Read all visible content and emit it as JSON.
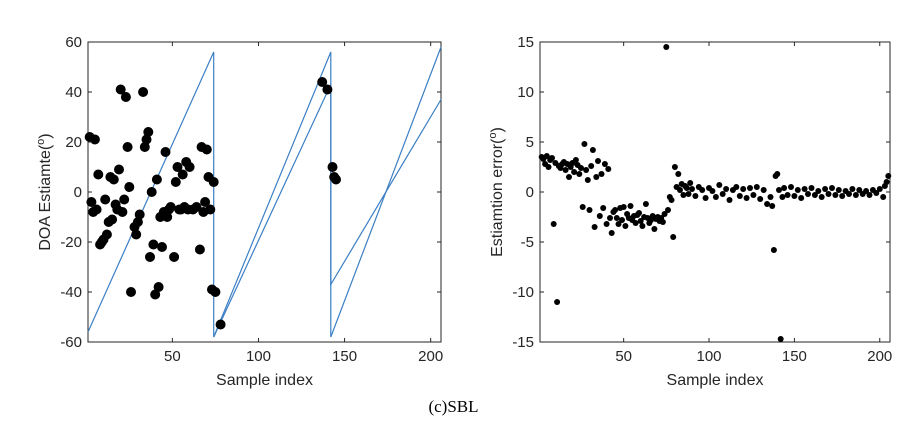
{
  "caption": "(c)SBL",
  "chart_data": [
    {
      "type": "scatter",
      "xlabel": "Sample index",
      "ylabel": "DOA Estiamte(",
      "ylabel_sup": "o",
      "ylabel_tail": ")",
      "xlim": [
        1,
        206
      ],
      "ylim": [
        -60,
        60
      ],
      "xticks": [
        50,
        100,
        150,
        200
      ],
      "yticks": [
        -60,
        -40,
        -20,
        0,
        20,
        40,
        60
      ],
      "grid": false,
      "legend": "none",
      "colors": {
        "true_line": "#3b7fc4",
        "estimates": "#000000"
      },
      "series": [
        {
          "kind": "line",
          "x": [
            1,
            74,
            74,
            142,
            142,
            206
          ],
          "y": [
            -56,
            56,
            -58,
            56,
            -58,
            58
          ]
        },
        {
          "kind": "line",
          "x": [
            74,
            142,
            142,
            206
          ],
          "y": [
            -58,
            43,
            -37,
            37
          ]
        },
        {
          "kind": "scatter",
          "points": [
            [
              2,
              22
            ],
            [
              3,
              -4
            ],
            [
              4,
              -8
            ],
            [
              5,
              21
            ],
            [
              6,
              -7
            ],
            [
              7,
              7
            ],
            [
              8,
              -21
            ],
            [
              9,
              -20
            ],
            [
              10,
              -19
            ],
            [
              11,
              -3
            ],
            [
              12,
              -17
            ],
            [
              13,
              -12
            ],
            [
              14,
              6
            ],
            [
              15,
              -11
            ],
            [
              16,
              5
            ],
            [
              17,
              -5
            ],
            [
              18,
              -7
            ],
            [
              19,
              9
            ],
            [
              20,
              41
            ],
            [
              21,
              -8
            ],
            [
              22,
              -3
            ],
            [
              23,
              38
            ],
            [
              24,
              18
            ],
            [
              25,
              2
            ],
            [
              26,
              -40
            ],
            [
              28,
              -14
            ],
            [
              29,
              -17
            ],
            [
              30,
              -12
            ],
            [
              31,
              -9
            ],
            [
              33,
              40
            ],
            [
              34,
              18
            ],
            [
              35,
              21
            ],
            [
              36,
              24
            ],
            [
              37,
              -26
            ],
            [
              38,
              0
            ],
            [
              39,
              -21
            ],
            [
              40,
              -41
            ],
            [
              41,
              5
            ],
            [
              42,
              -38
            ],
            [
              43,
              -10
            ],
            [
              44,
              -22
            ],
            [
              45,
              -8
            ],
            [
              46,
              16
            ],
            [
              47,
              -10
            ],
            [
              48,
              -7
            ],
            [
              49,
              -6
            ],
            [
              51,
              -26
            ],
            [
              52,
              4
            ],
            [
              53,
              10
            ],
            [
              54,
              -7
            ],
            [
              55,
              -7
            ],
            [
              56,
              7
            ],
            [
              57,
              -6
            ],
            [
              58,
              12
            ],
            [
              59,
              -7
            ],
            [
              60,
              10
            ],
            [
              62,
              -7
            ],
            [
              64,
              -6
            ],
            [
              66,
              -23
            ],
            [
              67,
              18
            ],
            [
              68,
              -8
            ],
            [
              69,
              -4
            ],
            [
              70,
              17
            ],
            [
              71,
              6
            ],
            [
              72,
              -7
            ],
            [
              73,
              -39
            ],
            [
              74,
              4
            ],
            [
              75,
              -40
            ],
            [
              78,
              -53
            ],
            [
              137,
              44
            ],
            [
              140,
              41
            ],
            [
              143,
              10
            ],
            [
              144,
              6
            ],
            [
              145,
              5
            ]
          ]
        }
      ]
    },
    {
      "type": "scatter",
      "xlabel": "Sample index",
      "ylabel": "Estiamtion error(",
      "ylabel_sup": "o",
      "ylabel_tail": ")",
      "xlim": [
        1,
        206
      ],
      "ylim": [
        -15,
        15
      ],
      "xticks": [
        50,
        100,
        150,
        200
      ],
      "yticks": [
        -15,
        -10,
        -5,
        0,
        5,
        10,
        15
      ],
      "grid": false,
      "legend": "none",
      "colors": {
        "estimates": "#000000"
      },
      "series": [
        {
          "kind": "scatter",
          "points": [
            [
              2,
              3.5
            ],
            [
              3,
              3.3
            ],
            [
              4,
              2.8
            ],
            [
              5,
              3.6
            ],
            [
              6,
              2.5
            ],
            [
              7,
              3.2
            ],
            [
              8,
              3.4
            ],
            [
              9,
              -3.2
            ],
            [
              10,
              2.9
            ],
            [
              11,
              -11
            ],
            [
              12,
              2.6
            ],
            [
              13,
              2.4
            ],
            [
              14,
              2.8
            ],
            [
              15,
              3.0
            ],
            [
              16,
              2.2
            ],
            [
              17,
              2.8
            ],
            [
              18,
              1.5
            ],
            [
              19,
              2.5
            ],
            [
              20,
              2.9
            ],
            [
              21,
              2.0
            ],
            [
              22,
              3.2
            ],
            [
              23,
              2.7
            ],
            [
              24,
              1.8
            ],
            [
              25,
              2.4
            ],
            [
              26,
              -1.5
            ],
            [
              27,
              4.8
            ],
            [
              28,
              2.2
            ],
            [
              29,
              1.2
            ],
            [
              30,
              -1.8
            ],
            [
              31,
              2.6
            ],
            [
              32,
              4.2
            ],
            [
              33,
              -3.5
            ],
            [
              34,
              1.5
            ],
            [
              35,
              3.1
            ],
            [
              36,
              -2.4
            ],
            [
              37,
              1.8
            ],
            [
              38,
              -1.6
            ],
            [
              39,
              2.8
            ],
            [
              40,
              -3.2
            ],
            [
              41,
              2.3
            ],
            [
              42,
              -2.6
            ],
            [
              43,
              -4.1
            ],
            [
              44,
              -2.0
            ],
            [
              45,
              -1.8
            ],
            [
              46,
              -2.6
            ],
            [
              47,
              -3.2
            ],
            [
              48,
              -1.6
            ],
            [
              49,
              -2.8
            ],
            [
              50,
              -1.5
            ],
            [
              51,
              -3.4
            ],
            [
              52,
              -2.2
            ],
            [
              53,
              -2.6
            ],
            [
              54,
              -1.4
            ],
            [
              55,
              -2.8
            ],
            [
              56,
              -2.4
            ],
            [
              57,
              -3.1
            ],
            [
              58,
              -2.3
            ],
            [
              59,
              -2.1
            ],
            [
              60,
              -2.9
            ],
            [
              61,
              -3.4
            ],
            [
              62,
              -2.5
            ],
            [
              63,
              -1.2
            ],
            [
              64,
              -2.6
            ],
            [
              65,
              -3.1
            ],
            [
              66,
              -2.8
            ],
            [
              67,
              -2.4
            ],
            [
              68,
              -3.7
            ],
            [
              69,
              -2.7
            ],
            [
              70,
              -2.5
            ],
            [
              71,
              -2.9
            ],
            [
              72,
              -2.6
            ],
            [
              73,
              -3.0
            ],
            [
              74,
              -2.2
            ],
            [
              75,
              14.5
            ],
            [
              76,
              -1.8
            ],
            [
              77,
              -0.5
            ],
            [
              78,
              -0.8
            ],
            [
              79,
              -4.5
            ],
            [
              80,
              2.5
            ],
            [
              81,
              0.5
            ],
            [
              82,
              1.8
            ],
            [
              83,
              0.2
            ],
            [
              84,
              0.8
            ],
            [
              85,
              -0.3
            ],
            [
              86,
              0.6
            ],
            [
              87,
              0.4
            ],
            [
              88,
              -0.2
            ],
            [
              89,
              0.9
            ],
            [
              90,
              0.3
            ],
            [
              92,
              -0.4
            ],
            [
              94,
              0.5
            ],
            [
              96,
              0.2
            ],
            [
              98,
              -0.6
            ],
            [
              100,
              0.4
            ],
            [
              102,
              0.1
            ],
            [
              104,
              -0.5
            ],
            [
              106,
              0.7
            ],
            [
              108,
              -0.2
            ],
            [
              110,
              0.3
            ],
            [
              112,
              -0.8
            ],
            [
              114,
              0.2
            ],
            [
              116,
              0.5
            ],
            [
              118,
              -0.4
            ],
            [
              120,
              0.3
            ],
            [
              122,
              -0.6
            ],
            [
              124,
              0.4
            ],
            [
              126,
              -0.3
            ],
            [
              128,
              0.5
            ],
            [
              130,
              -0.7
            ],
            [
              132,
              0.2
            ],
            [
              134,
              -1.2
            ],
            [
              136,
              -0.5
            ],
            [
              137,
              -1.4
            ],
            [
              138,
              -5.8
            ],
            [
              139,
              1.6
            ],
            [
              140,
              1.8
            ],
            [
              141,
              0.2
            ],
            [
              142,
              -14.7
            ],
            [
              143,
              -0.5
            ],
            [
              144,
              0.4
            ],
            [
              146,
              -0.3
            ],
            [
              148,
              0.5
            ],
            [
              150,
              -0.4
            ],
            [
              152,
              0.2
            ],
            [
              154,
              -0.6
            ],
            [
              156,
              0.3
            ],
            [
              158,
              -0.2
            ],
            [
              160,
              0.4
            ],
            [
              162,
              -0.3
            ],
            [
              164,
              0.1
            ],
            [
              166,
              -0.5
            ],
            [
              168,
              0.3
            ],
            [
              170,
              -0.2
            ],
            [
              172,
              0.4
            ],
            [
              174,
              -0.3
            ],
            [
              176,
              0.2
            ],
            [
              178,
              -0.4
            ],
            [
              180,
              0.1
            ],
            [
              182,
              -0.2
            ],
            [
              184,
              0.3
            ],
            [
              186,
              -0.3
            ],
            [
              188,
              0.2
            ],
            [
              190,
              -0.2
            ],
            [
              192,
              0.1
            ],
            [
              194,
              -0.3
            ],
            [
              196,
              0.2
            ],
            [
              198,
              -0.1
            ],
            [
              200,
              0.3
            ],
            [
              202,
              -0.5
            ],
            [
              203,
              0.6
            ],
            [
              204,
              1.0
            ],
            [
              205,
              1.6
            ]
          ]
        }
      ]
    }
  ]
}
